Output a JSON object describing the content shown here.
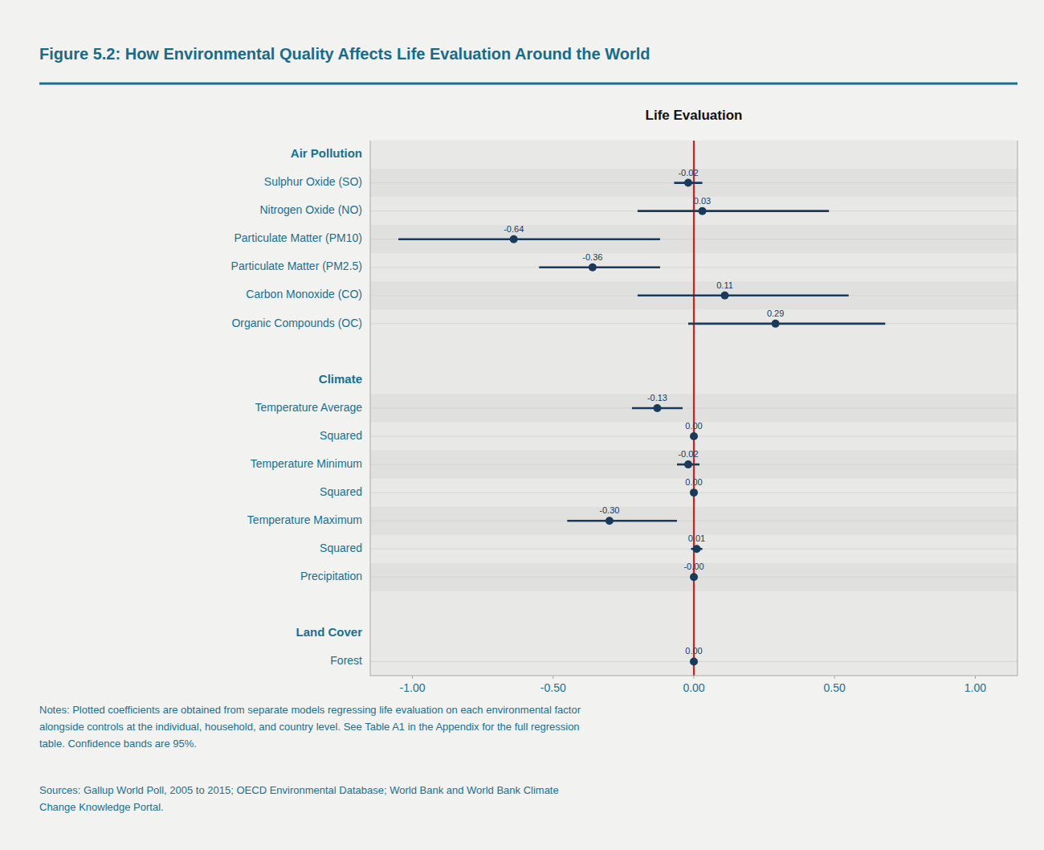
{
  "chart_data": {
    "type": "forest",
    "title": "Figure 5.2: How Environmental Quality Affects Life Evaluation Around the World",
    "subtitle": "Life Evaluation",
    "categories": [
      "Air Pollution",
      "Sulphur Oxide (SO)",
      "Nitrogen Oxide (NO)",
      "Particulate Matter (PM10)",
      "Particulate Matter (PM2.5)",
      "Carbon Monoxide (CO)",
      "Organic Compounds (OC)",
      null,
      "Climate",
      "Temperature Average",
      "Squared",
      "Temperature Minimum",
      "Squared",
      "Temperature Maximum",
      "Squared",
      "Precipitation",
      null,
      "Land Cover",
      "Forest"
    ],
    "values": [
      null,
      -0.02,
      0.03,
      -0.64,
      -0.36,
      0.11,
      0.29,
      null,
      null,
      -0.13,
      0.0,
      -0.02,
      0.0,
      -0.3,
      0.01,
      -0.0,
      null,
      null,
      0.0
    ],
    "value_labels": [
      null,
      "-0.02",
      "0.03",
      "-0.64",
      "-0.36",
      "0.11",
      "0.29",
      null,
      null,
      "-0.13",
      "0.00",
      "-0.02",
      "0.00",
      "-0.30",
      "0.01",
      "-0.00",
      null,
      null,
      "0.00"
    ],
    "ci_low": [
      null,
      -0.07,
      -0.2,
      -1.05,
      -0.55,
      -0.2,
      -0.02,
      null,
      null,
      -0.22,
      -0.01,
      -0.06,
      -0.01,
      -0.45,
      -0.01,
      -0.01,
      null,
      null,
      -0.01
    ],
    "ci_high": [
      null,
      0.03,
      0.48,
      -0.12,
      -0.12,
      0.55,
      0.68,
      null,
      null,
      -0.04,
      0.01,
      0.02,
      0.01,
      -0.06,
      0.03,
      0.01,
      null,
      null,
      0.01
    ],
    "color": "#1a3a5c",
    "data_labels": true,
    "grid": false,
    "xlim": [
      -1.15,
      1.15
    ],
    "xticks": [
      {
        "value": -1.0,
        "label": "-1.00"
      },
      {
        "value": -0.5,
        "label": "-0.50"
      },
      {
        "value": 0.0,
        "label": "0.00"
      },
      {
        "value": 0.5,
        "label": "0.50"
      },
      {
        "value": 1.0,
        "label": "1.00"
      }
    ],
    "reference_line": {
      "value": 0,
      "color": "#cc2222"
    },
    "annotations": [
      "Notes: Plotted coefficients are obtained from separate models regressing life evaluation on each environmental factor\nalongside controls at the individual, household, and country level. See Table A1 in the Appendix for the full regression\ntable. Confidence bands are 95%.",
      "Sources: Gallup World Poll, 2005 to 2015; OECD Environmental Database; World Bank and World Bank Climate\nChange Knowledge Portal."
    ]
  }
}
